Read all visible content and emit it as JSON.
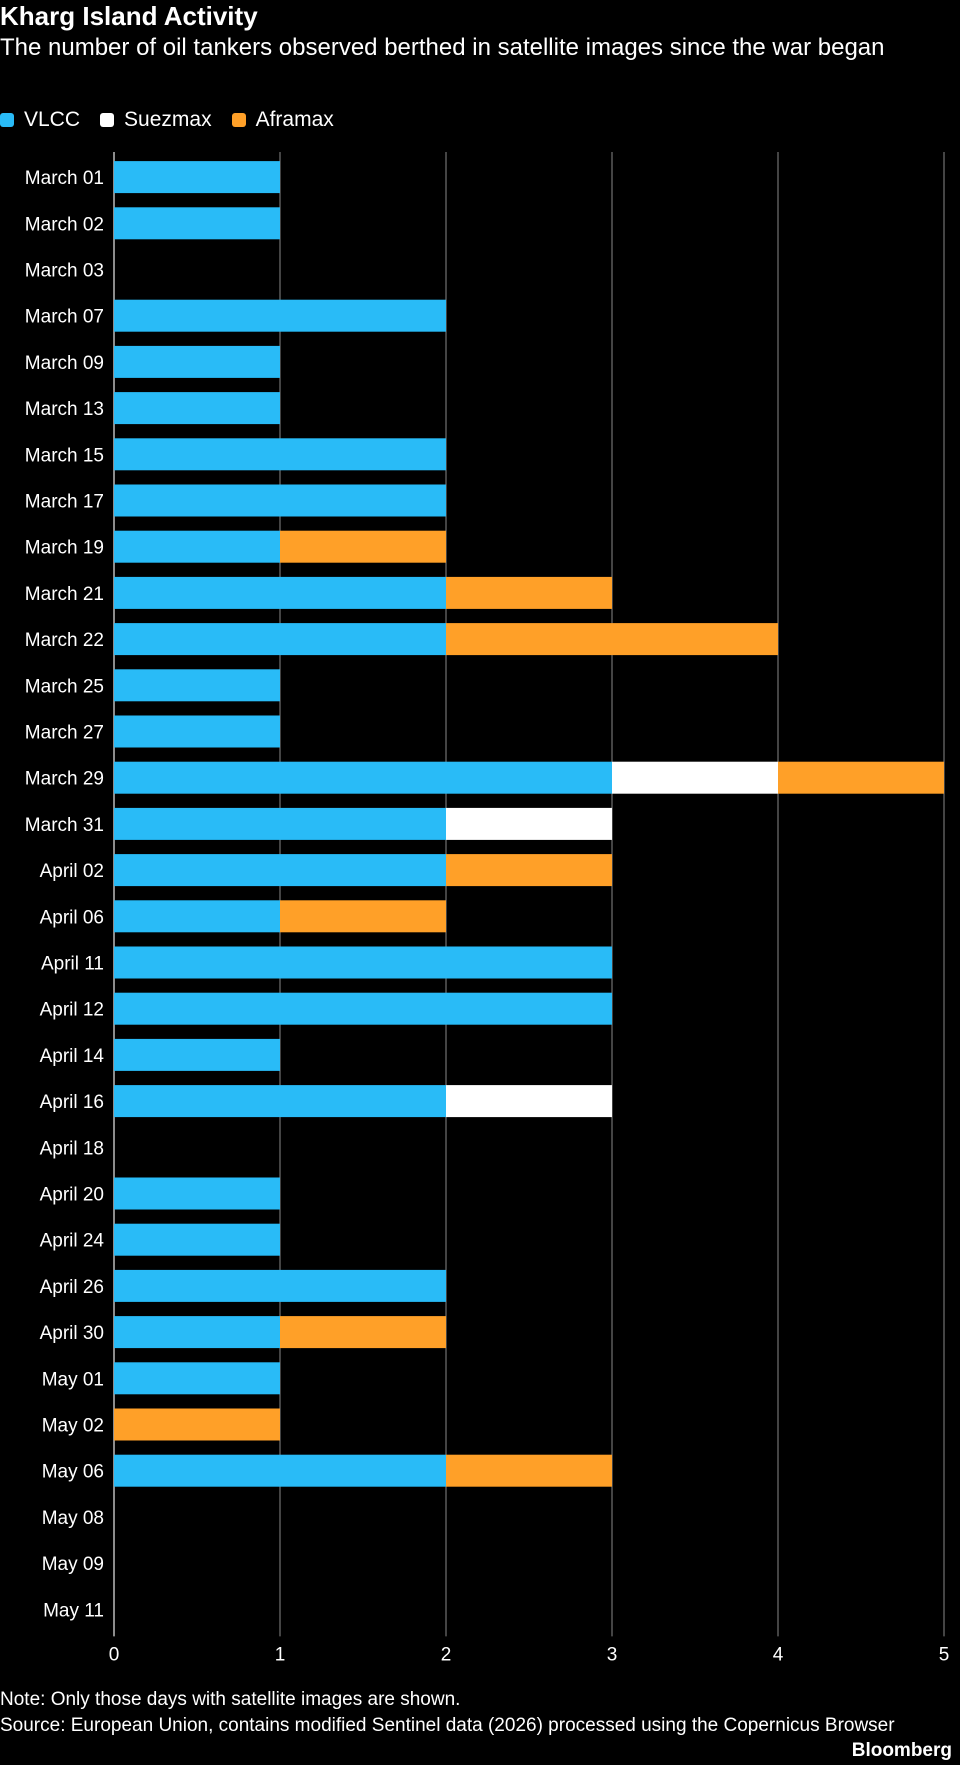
{
  "chart_data": {
    "type": "bar",
    "orientation": "horizontal",
    "stacked": true,
    "title": "Kharg Island Activity",
    "subtitle": "The number of oil tankers observed berthed in satellite images since the war began",
    "xlabel": "",
    "ylabel": "",
    "xlim": [
      0,
      5
    ],
    "x_ticks": [
      "0",
      "1",
      "2",
      "3",
      "4",
      "5"
    ],
    "grid": true,
    "legend_position": "top-left",
    "categories": [
      "March 01",
      "March 02",
      "March 03",
      "March 07",
      "March 09",
      "March 13",
      "March 15",
      "March 17",
      "March 19",
      "March 21",
      "March 22",
      "March 25",
      "March 27",
      "March 29",
      "March 31",
      "April 02",
      "April 06",
      "April 11",
      "April 12",
      "April 14",
      "April 16",
      "April 18",
      "April 20",
      "April 24",
      "April 26",
      "April 30",
      "May 01",
      "May 02",
      "May 06",
      "May 08",
      "May 09",
      "May 11"
    ],
    "series": [
      {
        "name": "VLCC",
        "color": "#29bbf7",
        "values": [
          1,
          1,
          0,
          2,
          1,
          1,
          2,
          2,
          1,
          2,
          2,
          1,
          1,
          3,
          2,
          2,
          1,
          3,
          3,
          1,
          2,
          0,
          1,
          1,
          2,
          1,
          1,
          0,
          2,
          0,
          0,
          0
        ]
      },
      {
        "name": "Suezmax",
        "color": "#ffffff",
        "values": [
          0,
          0,
          0,
          0,
          0,
          0,
          0,
          0,
          0,
          0,
          0,
          0,
          0,
          1,
          1,
          0,
          0,
          0,
          0,
          0,
          1,
          0,
          0,
          0,
          0,
          0,
          0,
          0,
          0,
          0,
          0,
          0
        ]
      },
      {
        "name": "Aframax",
        "color": "#ffa028",
        "values": [
          0,
          0,
          0,
          0,
          0,
          0,
          0,
          0,
          1,
          1,
          2,
          0,
          0,
          1,
          0,
          1,
          1,
          0,
          0,
          0,
          0,
          0,
          0,
          0,
          0,
          1,
          0,
          1,
          1,
          0,
          0,
          0
        ]
      }
    ]
  },
  "footer": {
    "note": "Note: Only those days with satellite images are shown.",
    "source": "Source: European Union, contains modified Sentinel data (2026) processed using the Copernicus Browser",
    "brand": "Bloomberg"
  }
}
